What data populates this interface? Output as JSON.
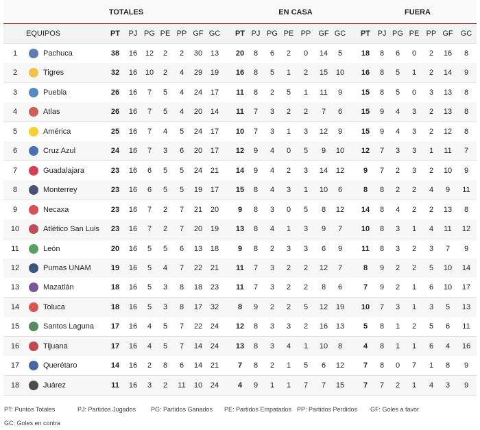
{
  "header": {
    "groups": [
      "TOTALES",
      "EN CASA",
      "FUERA"
    ],
    "team_column": "EQUIPOS",
    "totales_columns": [
      "PT",
      "PJ",
      "PG",
      "PE",
      "PP",
      "GF",
      "GC"
    ],
    "en_casa_columns": [
      "PT",
      "PJ",
      "PG",
      "PE",
      "PP",
      "GF",
      "GC"
    ],
    "fuera_columns": [
      "PT",
      "PJ",
      "PG",
      "PE",
      "PP",
      "GF",
      "GC"
    ]
  },
  "rows": [
    {
      "rank": 1,
      "team": "Pachuca",
      "totales": [
        38,
        16,
        12,
        2,
        2,
        30,
        13
      ],
      "en_casa": [
        20,
        8,
        6,
        2,
        0,
        14,
        5
      ],
      "fuera": [
        18,
        8,
        6,
        0,
        2,
        16,
        8
      ]
    },
    {
      "rank": 2,
      "team": "Tigres",
      "totales": [
        32,
        16,
        10,
        2,
        4,
        29,
        19
      ],
      "en_casa": [
        16,
        8,
        5,
        1,
        2,
        15,
        10
      ],
      "fuera": [
        16,
        8,
        5,
        1,
        2,
        14,
        9
      ]
    },
    {
      "rank": 3,
      "team": "Puebla",
      "totales": [
        26,
        16,
        7,
        5,
        4,
        24,
        17
      ],
      "en_casa": [
        11,
        8,
        2,
        5,
        1,
        11,
        9
      ],
      "fuera": [
        15,
        8,
        5,
        0,
        3,
        13,
        8
      ]
    },
    {
      "rank": 4,
      "team": "Atlas",
      "totales": [
        26,
        16,
        7,
        5,
        4,
        20,
        14
      ],
      "en_casa": [
        11,
        7,
        3,
        2,
        2,
        7,
        6
      ],
      "fuera": [
        15,
        9,
        4,
        3,
        2,
        13,
        8
      ]
    },
    {
      "rank": 5,
      "team": "América",
      "totales": [
        25,
        16,
        7,
        4,
        5,
        24,
        17
      ],
      "en_casa": [
        10,
        7,
        3,
        1,
        3,
        12,
        9
      ],
      "fuera": [
        15,
        9,
        4,
        3,
        2,
        12,
        8
      ]
    },
    {
      "rank": 6,
      "team": "Cruz Azul",
      "totales": [
        24,
        16,
        7,
        3,
        6,
        20,
        17
      ],
      "en_casa": [
        12,
        9,
        4,
        0,
        5,
        9,
        10
      ],
      "fuera": [
        12,
        7,
        3,
        3,
        1,
        11,
        7
      ]
    },
    {
      "rank": 7,
      "team": "Guadalajara",
      "totales": [
        23,
        16,
        6,
        5,
        5,
        24,
        21
      ],
      "en_casa": [
        14,
        9,
        4,
        2,
        3,
        14,
        12
      ],
      "fuera": [
        9,
        7,
        2,
        3,
        2,
        10,
        9
      ]
    },
    {
      "rank": 8,
      "team": "Monterrey",
      "totales": [
        23,
        16,
        6,
        5,
        5,
        19,
        17
      ],
      "en_casa": [
        15,
        8,
        4,
        3,
        1,
        10,
        6
      ],
      "fuera": [
        8,
        8,
        2,
        2,
        4,
        9,
        11
      ]
    },
    {
      "rank": 9,
      "team": "Necaxa",
      "totales": [
        23,
        16,
        7,
        2,
        7,
        21,
        20
      ],
      "en_casa": [
        9,
        8,
        3,
        0,
        5,
        8,
        12
      ],
      "fuera": [
        14,
        8,
        4,
        2,
        2,
        13,
        8
      ]
    },
    {
      "rank": 10,
      "team": "Atlético San Luis",
      "totales": [
        23,
        16,
        7,
        2,
        7,
        20,
        19
      ],
      "en_casa": [
        13,
        8,
        4,
        1,
        3,
        9,
        7
      ],
      "fuera": [
        10,
        8,
        3,
        1,
        4,
        11,
        12
      ]
    },
    {
      "rank": 11,
      "team": "León",
      "totales": [
        20,
        16,
        5,
        5,
        6,
        13,
        18
      ],
      "en_casa": [
        9,
        8,
        2,
        3,
        3,
        6,
        9
      ],
      "fuera": [
        11,
        8,
        3,
        2,
        3,
        7,
        9
      ]
    },
    {
      "rank": 12,
      "team": "Pumas UNAM",
      "totales": [
        19,
        16,
        5,
        4,
        7,
        22,
        21
      ],
      "en_casa": [
        11,
        7,
        3,
        2,
        2,
        12,
        7
      ],
      "fuera": [
        8,
        9,
        2,
        2,
        5,
        10,
        14
      ]
    },
    {
      "rank": 13,
      "team": "Mazatlán",
      "totales": [
        18,
        16,
        5,
        3,
        8,
        18,
        23
      ],
      "en_casa": [
        11,
        7,
        3,
        2,
        2,
        8,
        6
      ],
      "fuera": [
        7,
        9,
        2,
        1,
        6,
        10,
        17
      ]
    },
    {
      "rank": 14,
      "team": "Toluca",
      "totales": [
        18,
        16,
        5,
        3,
        8,
        17,
        32
      ],
      "en_casa": [
        8,
        9,
        2,
        2,
        5,
        12,
        19
      ],
      "fuera": [
        10,
        7,
        3,
        1,
        3,
        5,
        13
      ]
    },
    {
      "rank": 15,
      "team": "Santos Laguna",
      "totales": [
        17,
        16,
        4,
        5,
        7,
        22,
        24
      ],
      "en_casa": [
        12,
        8,
        3,
        3,
        2,
        16,
        13
      ],
      "fuera": [
        5,
        8,
        1,
        2,
        5,
        6,
        11
      ]
    },
    {
      "rank": 16,
      "team": "Tijuana",
      "totales": [
        17,
        16,
        4,
        5,
        7,
        14,
        24
      ],
      "en_casa": [
        13,
        8,
        3,
        4,
        1,
        10,
        8
      ],
      "fuera": [
        4,
        8,
        1,
        1,
        6,
        4,
        16
      ]
    },
    {
      "rank": 17,
      "team": "Querétaro",
      "totales": [
        14,
        16,
        2,
        8,
        6,
        14,
        21
      ],
      "en_casa": [
        7,
        8,
        2,
        1,
        5,
        6,
        12
      ],
      "fuera": [
        7,
        8,
        0,
        7,
        1,
        8,
        9
      ]
    },
    {
      "rank": 18,
      "team": "Juárez",
      "totales": [
        11,
        16,
        3,
        2,
        11,
        10,
        24
      ],
      "en_casa": [
        4,
        9,
        1,
        1,
        7,
        7,
        15
      ],
      "fuera": [
        7,
        7,
        2,
        1,
        4,
        3,
        9
      ]
    }
  ],
  "footer": {
    "legend": [
      "PT: Puntos Totales",
      "PJ: Partidos Jugados",
      "PG: Partidos Ganados",
      "PE: Partidos Empatados",
      "PP: Partidos Perdidos",
      "GF: Goles a favor",
      "GC: Goles en contra"
    ]
  }
}
